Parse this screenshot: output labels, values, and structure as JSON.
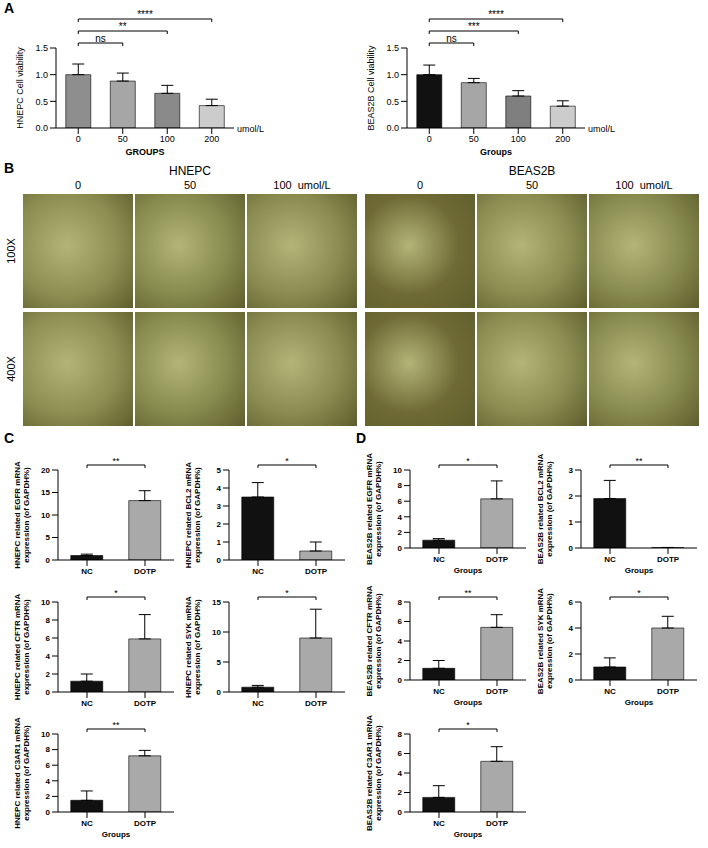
{
  "chart_data": [
    {
      "panel": "A",
      "type": "bar",
      "categories": [
        "0",
        "50",
        "100",
        "200"
      ],
      "values": [
        1.0,
        0.88,
        0.65,
        0.42
      ],
      "errors": [
        0.2,
        0.15,
        0.15,
        0.12
      ],
      "colors": [
        "#8e8e8e",
        "#a6a6a6",
        "#8a8a8a",
        "#cccccc"
      ],
      "y_label": "HNEPC Cell viability",
      "x_label": "GROUPS",
      "unit_label": "umol/L",
      "ylim": [
        0,
        1.5
      ],
      "yticks": [
        {
          "value": 0,
          "label": "0.0"
        },
        {
          "value": 0.5,
          "label": "0.5"
        },
        {
          "value": 1,
          "label": "1.0"
        },
        {
          "value": 1.5,
          "label": "1.5"
        }
      ],
      "annotations": [
        {
          "from": "0",
          "to": "50",
          "label": "ns"
        },
        {
          "from": "0",
          "to": "100",
          "label": "**"
        },
        {
          "from": "0",
          "to": "200",
          "label": "****"
        }
      ]
    },
    {
      "type": "bar",
      "categories": [
        "0",
        "50",
        "100",
        "200"
      ],
      "values": [
        1.0,
        0.85,
        0.6,
        0.41
      ],
      "errors": [
        0.18,
        0.08,
        0.1,
        0.1
      ],
      "colors": [
        "#111111",
        "#a6a6a6",
        "#7f7f7f",
        "#cccccc"
      ],
      "y_label": "BEAS2B Cell viability",
      "x_label": "Groups",
      "unit_label": "umol/L",
      "ylim": [
        0,
        1.5
      ],
      "yticks": [
        {
          "value": 0,
          "label": "0.0"
        },
        {
          "value": 0.5,
          "label": "0.5"
        },
        {
          "value": 1,
          "label": "1.0"
        },
        {
          "value": 1.5,
          "label": "1.5"
        }
      ],
      "annotations": [
        {
          "from": "0",
          "to": "50",
          "label": "ns"
        },
        {
          "from": "0",
          "to": "100",
          "label": "***"
        },
        {
          "from": "0",
          "to": "200",
          "label": "****"
        }
      ]
    },
    {
      "panel": "C",
      "type": "bar",
      "categories": [
        "NC",
        "DOTP"
      ],
      "values": [
        1.0,
        13.2
      ],
      "errors": [
        0.3,
        2.2
      ],
      "colors": [
        "#111111",
        "#a9a9a9"
      ],
      "y_label": "HNEPC related EGFR mRNA expression (of GAPDH%)",
      "ylim": [
        0,
        20
      ],
      "yticks": [
        0,
        5,
        10,
        15,
        20
      ],
      "annotations": [
        {
          "from": "NC",
          "to": "DOTP",
          "label": "**"
        }
      ]
    },
    {
      "type": "bar",
      "categories": [
        "NC",
        "DOTP"
      ],
      "values": [
        3.5,
        0.5
      ],
      "errors": [
        0.8,
        0.5
      ],
      "colors": [
        "#111111",
        "#a9a9a9"
      ],
      "y_label": "HNEPC related BCL2 mRNA expression (of GAPDH%)",
      "ylim": [
        0,
        5
      ],
      "yticks": [
        0,
        1,
        2,
        3,
        4,
        5
      ],
      "annotations": [
        {
          "from": "NC",
          "to": "DOTP",
          "label": "*"
        }
      ]
    },
    {
      "type": "bar",
      "categories": [
        "NC",
        "DOTP"
      ],
      "values": [
        1.2,
        5.9
      ],
      "errors": [
        0.8,
        2.7
      ],
      "colors": [
        "#111111",
        "#a9a9a9"
      ],
      "y_label": "HNEPC related CFTR mRNA expression (of GAPDH%)",
      "ylim": [
        0,
        10
      ],
      "yticks": [
        0,
        2,
        4,
        6,
        8,
        10
      ],
      "annotations": [
        {
          "from": "NC",
          "to": "DOTP",
          "label": "*"
        }
      ]
    },
    {
      "type": "bar",
      "categories": [
        "NC",
        "DOTP"
      ],
      "values": [
        0.8,
        9.0
      ],
      "errors": [
        0.3,
        4.8
      ],
      "colors": [
        "#111111",
        "#a9a9a9"
      ],
      "y_label": "HNEPC related SYK mRNA expression (of GAPDH%)",
      "ylim": [
        0,
        15
      ],
      "yticks": [
        0,
        5,
        10,
        15
      ],
      "annotations": [
        {
          "from": "NC",
          "to": "DOTP",
          "label": "*"
        }
      ]
    },
    {
      "type": "bar",
      "categories": [
        "NC",
        "DOTP"
      ],
      "values": [
        1.5,
        7.2
      ],
      "errors": [
        1.2,
        0.7
      ],
      "colors": [
        "#111111",
        "#a9a9a9"
      ],
      "y_label": "HNEPC related C3AR1 mRNA expression (of GAPDH%)",
      "x_label": "Groups",
      "ylim": [
        0,
        10
      ],
      "yticks": [
        0,
        2,
        4,
        6,
        8,
        10
      ],
      "annotations": [
        {
          "from": "NC",
          "to": "DOTP",
          "label": "**"
        }
      ]
    },
    {
      "panel": "D",
      "type": "bar",
      "categories": [
        "NC",
        "DOTP"
      ],
      "values": [
        1.0,
        6.3
      ],
      "errors": [
        0.2,
        2.3
      ],
      "colors": [
        "#111111",
        "#a9a9a9"
      ],
      "y_label": "BEAS2B related EGFR mRNA expression (of GAPDH%)",
      "x_label": "Groups",
      "ylim": [
        0,
        10
      ],
      "yticks": [
        0,
        2,
        4,
        6,
        8,
        10
      ],
      "annotations": [
        {
          "from": "NC",
          "to": "DOTP",
          "label": "*"
        }
      ]
    },
    {
      "type": "bar",
      "categories": [
        "NC",
        "DOTP"
      ],
      "values": [
        1.9,
        0.02
      ],
      "errors": [
        0.7,
        0
      ],
      "colors": [
        "#111111",
        "#a9a9a9"
      ],
      "y_label": "BEAS2B related BCL2 mRNA expression (of GAPDH%)",
      "x_label": "Groups",
      "ylim": [
        0,
        3
      ],
      "yticks": [
        0,
        1,
        2,
        3
      ],
      "annotations": [
        {
          "from": "NC",
          "to": "DOTP",
          "label": "**"
        }
      ]
    },
    {
      "type": "bar",
      "categories": [
        "NC",
        "DOTP"
      ],
      "values": [
        1.2,
        5.4
      ],
      "errors": [
        0.8,
        1.3
      ],
      "colors": [
        "#111111",
        "#a9a9a9"
      ],
      "y_label": "BEAS2B related CFTR mRNA expression (of GAPDH%)",
      "x_label": "Groups",
      "ylim": [
        0,
        8
      ],
      "yticks": [
        0,
        2,
        4,
        6,
        8
      ],
      "annotations": [
        {
          "from": "NC",
          "to": "DOTP",
          "label": "**"
        }
      ]
    },
    {
      "type": "bar",
      "categories": [
        "NC",
        "DOTP"
      ],
      "values": [
        1.0,
        4.0
      ],
      "errors": [
        0.7,
        0.9
      ],
      "colors": [
        "#111111",
        "#a9a9a9"
      ],
      "y_label": "BEAS2B related SYK mRNA expression (of GAPDH%)",
      "x_label": "Groups",
      "ylim": [
        0,
        6
      ],
      "yticks": [
        0,
        2,
        4,
        6
      ],
      "annotations": [
        {
          "from": "NC",
          "to": "DOTP",
          "label": "*"
        }
      ]
    },
    {
      "type": "bar",
      "categories": [
        "NC",
        "DOTP"
      ],
      "values": [
        1.5,
        5.2
      ],
      "errors": [
        1.2,
        1.5
      ],
      "colors": [
        "#111111",
        "#a9a9a9"
      ],
      "y_label": "BEAS2B related C3AR1 mRNA expression (of GAPDH%)",
      "x_label": "Groups",
      "ylim": [
        0,
        8
      ],
      "yticks": [
        0,
        2,
        4,
        6,
        8
      ],
      "annotations": [
        {
          "from": "NC",
          "to": "DOTP",
          "label": "*"
        }
      ]
    }
  ],
  "images": {
    "panel": "B",
    "rows": [
      "100X",
      "400X"
    ],
    "unit_label": "umol/L",
    "groups": [
      {
        "title": "HNEPC",
        "columns": [
          "0",
          "50",
          "100"
        ]
      },
      {
        "title": "BEAS2B",
        "columns": [
          "0",
          "50",
          "100"
        ]
      }
    ]
  }
}
